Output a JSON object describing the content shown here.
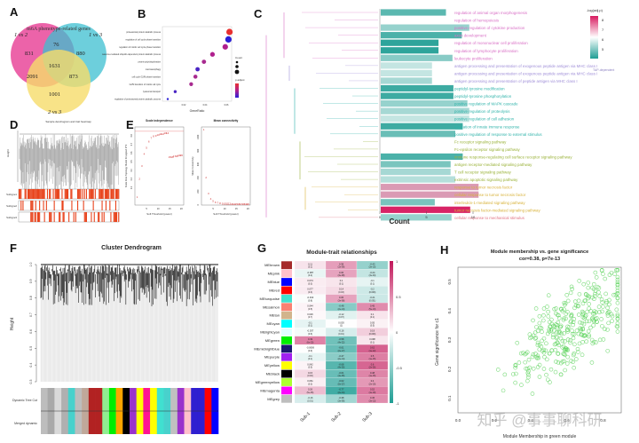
{
  "chart_data": [
    {
      "panel": "A",
      "type": "venn",
      "title": "m6A phenotype-related genes",
      "sets": [
        "1 vs 2",
        "1 vs 3",
        "2 vs 3"
      ],
      "regions": {
        "only_1vs2": 831,
        "only_1vs3": 880,
        "only_2vs3": 1001,
        "1vs2_1vs3": 76,
        "1vs2_2vs3": 2091,
        "1vs3_2vs3": 873,
        "all": 1631
      },
      "colors": [
        "#e9489a",
        "#3cbfd0",
        "#f6dc6a"
      ]
    },
    {
      "panel": "B",
      "type": "scatter",
      "subtype": "dotplot",
      "xlabel": "GeneRatio",
      "x_ticks": [
        "0.02",
        "0.04",
        "0.06"
      ],
      "legend_count_title": "Count",
      "legend_p_title": "p.adjust",
      "terms": [
        {
          "label": "proteasomal protein catabolic process",
          "x": 0.063,
          "size": 3,
          "color": "#e8302f"
        },
        {
          "label": "regulation of cell cycle phase transition",
          "x": 0.062,
          "size": 3,
          "color": "#2a1fd6"
        },
        {
          "label": "regulation of mitotic cell cycle phase transition",
          "x": 0.059,
          "size": 2.6,
          "color": "#b0208e"
        },
        {
          "label": "proteasome-mediated ubiquitin-dependent protein catabolic process",
          "x": 0.047,
          "size": 2.2,
          "color": "#b0208e"
        },
        {
          "label": "protein polyubiquitination",
          "x": 0.039,
          "size": 2,
          "color": "#a82a8f"
        },
        {
          "label": "macroautophagy",
          "x": 0.033,
          "size": 2,
          "color": "#4a24c4"
        },
        {
          "label": "cell cycle G2/M phase transition",
          "x": 0.031,
          "size": 1.9,
          "color": "#a82a8f"
        },
        {
          "label": "G2/M transition of mitotic cell cycle",
          "x": 0.027,
          "size": 1.8,
          "color": "#a82a8f"
        },
        {
          "label": "lysosomal transport",
          "x": 0.012,
          "size": 1.4,
          "color": "#4a24c4"
        },
        {
          "label": "regulation of proteasomal protein catabolic process",
          "x": 0.005,
          "size": 1,
          "color": "#2a1fd6"
        }
      ]
    },
    {
      "panel": "C",
      "type": "bar",
      "orientation": "horizontal",
      "xlabel": "Count",
      "x_ticks": [
        "0",
        "5",
        "10"
      ],
      "xlim": [
        0,
        12
      ],
      "legend_title": "-log(adj.p)",
      "legend_ticks": [
        "8",
        "7",
        "6",
        "5"
      ],
      "categories": [
        {
          "label": "regulation of animal organ morphogenesis",
          "value": 7,
          "neglogp": 5.2,
          "group": "pink"
        },
        {
          "label": "regulation of hemopoiesis",
          "value": 0,
          "neglogp": 6,
          "group": "pink"
        },
        {
          "label": "positive regulation of cytokine production",
          "value": 9.5,
          "neglogp": 5.6,
          "group": "pink"
        },
        {
          "label": "axon development",
          "value": 8.7,
          "neglogp": 5.1,
          "group": "pink"
        },
        {
          "label": "regulation of mononuclear cell proliferation",
          "value": 6.2,
          "neglogp": 4.9,
          "group": "pink"
        },
        {
          "label": "regulation of lymphocyte proliferation",
          "value": 6.2,
          "neglogp": 4.9,
          "group": "pink"
        },
        {
          "label": "leukocyte proliferation",
          "value": 7.7,
          "neglogp": 5.5,
          "group": "pink"
        },
        {
          "label": "antigen processing and presentation of exogenous peptide antigen via MHC class I",
          "value": 5.5,
          "neglogp": 5.9,
          "group": "purple"
        },
        {
          "label": "antigen processing and presentation of exogenous peptide antigen via MHC class I",
          "value": 5.5,
          "neglogp": 5.9,
          "group": "purple"
        },
        {
          "label": "antigen processing and presentation of peptide antigen via MHC class I",
          "value": 5.5,
          "neglogp": 5.7,
          "group": "purple"
        },
        {
          "label": "peptidyl-tyrosine modification",
          "value": 7.8,
          "neglogp": 5.0,
          "group": "teal"
        },
        {
          "label": "peptidyl-tyrosine phosphorylation",
          "value": 7.8,
          "neglogp": 5.0,
          "group": "teal"
        },
        {
          "label": "positive regulation of MAPK cascade",
          "value": 9.3,
          "neglogp": 5.6,
          "group": "teal"
        },
        {
          "label": "positive regulation of proteolysis",
          "value": 9.5,
          "neglogp": 5.7,
          "group": "teal"
        },
        {
          "label": "positive regulation of cell adhesion",
          "value": 9.5,
          "neglogp": 5.9,
          "group": "teal"
        },
        {
          "label": "regulation of innate immune response",
          "value": 8.8,
          "neglogp": 5.0,
          "group": "teal"
        },
        {
          "label": "positive regulation of response to external stimulus",
          "value": 8.0,
          "neglogp": 5.3,
          "group": "teal"
        },
        {
          "label": "Fc receptor signaling pathway",
          "value": 0,
          "neglogp": 6,
          "group": "olive"
        },
        {
          "label": "Fc-epsilon receptor signaling pathway",
          "value": 0,
          "neglogp": 6,
          "group": "olive"
        },
        {
          "label": "immune response-regulating cell surface receptor signaling pathway",
          "value": 8.8,
          "neglogp": 5.1,
          "group": "olive"
        },
        {
          "label": "antigen receptor-mediated signaling pathway",
          "value": 7.5,
          "neglogp": 5.4,
          "group": "olive"
        },
        {
          "label": "T cell receptor signaling pathway",
          "value": 7.5,
          "neglogp": 5.7,
          "group": "olive"
        },
        {
          "label": "extrinsic apoptotic signaling pathway",
          "value": 8.0,
          "neglogp": 5.8,
          "group": "olive"
        },
        {
          "label": "response to tumor necrosis factor",
          "value": 10.5,
          "neglogp": 7.0,
          "group": "yellow"
        },
        {
          "label": "cellular response to tumor necrosis factor",
          "value": 10.5,
          "neglogp": 7.0,
          "group": "yellow"
        },
        {
          "label": "interleukin-1-mediated signaling pathway",
          "value": 5.8,
          "neglogp": 5.4,
          "group": "yellow"
        },
        {
          "label": "tumor necrosis factor-mediated signaling pathway",
          "value": 9.6,
          "neglogp": 8.3,
          "group": "yellow"
        },
        {
          "label": "cellular response to mechanical stimulus",
          "value": 7.6,
          "neglogp": 5.6,
          "group": "red"
        }
      ],
      "side_note": "TAP-dependent"
    },
    {
      "panel": "D",
      "type": "dendrogram",
      "title": "Sample dendrogram and trait heatmap",
      "ylabel": "Height",
      "trait_rows": [
        "Subtype1",
        "Subtype2",
        "Subtype3"
      ]
    },
    {
      "panel": "E",
      "type": "scatter",
      "plots": [
        {
          "title": "Scale independence",
          "xlabel": "Soft Threshold (power)",
          "ylabel": "Scale Free Topology Model Fit,signed R^2",
          "x_ticks": [
            "5",
            "10",
            "15",
            "20"
          ],
          "y_ticks": [
            "0.2",
            "0.3",
            "0.4",
            "0.5",
            "0.6",
            "0.7",
            "0.8"
          ],
          "points": [
            [
              1,
              0.08
            ],
            [
              2,
              0.29
            ],
            [
              3,
              0.44
            ],
            [
              4,
              0.58
            ],
            [
              5,
              0.65
            ],
            [
              6,
              0.72
            ],
            [
              7,
              0.76
            ],
            [
              8,
              0.78
            ],
            [
              9,
              0.79
            ],
            [
              10,
              0.8
            ],
            [
              11,
              0.81
            ],
            [
              12,
              0.81
            ],
            [
              13,
              0.82
            ],
            [
              14,
              0.82
            ],
            [
              15,
              0.54
            ],
            [
              16,
              0.54
            ],
            [
              17,
              0.55
            ],
            [
              18,
              0.55
            ],
            [
              19,
              0.56
            ],
            [
              20,
              0.56
            ]
          ]
        },
        {
          "title": "Mean connectivity",
          "xlabel": "Soft Threshold (power)",
          "ylabel": "Mean Connectivity",
          "x_ticks": [
            "5",
            "10",
            "15",
            "20"
          ],
          "y_ticks": [
            "0",
            "200",
            "400",
            "600",
            "800",
            "1000"
          ],
          "points": [
            [
              1,
              1100
            ],
            [
              2,
              390
            ],
            [
              3,
              160
            ],
            [
              4,
              80
            ],
            [
              5,
              45
            ],
            [
              6,
              28
            ],
            [
              7,
              18
            ],
            [
              8,
              12
            ],
            [
              9,
              9
            ],
            [
              10,
              7
            ],
            [
              11,
              5
            ],
            [
              12,
              4
            ],
            [
              13,
              3
            ],
            [
              14,
              3
            ],
            [
              15,
              2
            ],
            [
              16,
              2
            ],
            [
              17,
              2
            ],
            [
              18,
              1
            ],
            [
              19,
              1
            ],
            [
              20,
              1
            ]
          ]
        }
      ]
    },
    {
      "panel": "F",
      "type": "dendrogram",
      "title": "Cluster Dendrogram",
      "ylabel": "Height",
      "y_ticks": [
        "0.3",
        "0.4",
        "0.5",
        "0.6",
        "0.7",
        "0.8",
        "0.9",
        "1.0"
      ],
      "ylim": [
        0.3,
        1.0
      ],
      "color_rows": [
        "Dynamic Tree Cut",
        "Merged dynamic"
      ],
      "module_colors": [
        "#bdbdbd",
        "#a9a9a9",
        "#d9d9d9",
        "#b0b0b0",
        "#48d1cc",
        "#bdbdbd",
        "#c0a89a",
        "#b22222",
        "#b22222",
        "#90ee90",
        "#00ee00",
        "#ffa500",
        "#000000",
        "#9932cc",
        "#ffff00",
        "#ff1493",
        "#ffff00",
        "#40e0d0",
        "#48d1cc",
        "#c0c0c0",
        "#9932cc",
        "#ffc0cb",
        "#2f1fd0",
        "#2f1fd0",
        "#ff0000",
        "#0000ff"
      ]
    },
    {
      "panel": "G",
      "type": "heatmap",
      "title": "Module-trait relationships",
      "columns": [
        "Sub-1",
        "Sub-2",
        "Sub-3"
      ],
      "colorbar_ticks": [
        "1",
        "0.5",
        "0",
        "-0.5",
        "-1"
      ],
      "rows": [
        {
          "module": "MEbrown",
          "color": "#a52a2a",
          "values": [
            0.11,
            0.38,
            -0.43
          ],
          "p": [
            "(0.1)",
            "(1e-09)",
            "(3e-10)"
          ]
        },
        {
          "module": "MEpink",
          "color": "#ffc0cb",
          "values": [
            -0.087,
            0.36,
            -0.24
          ],
          "p": [
            "(0.2)",
            "(3e-08)",
            "(3e-04)"
          ]
        },
        {
          "module": "MEblue",
          "color": "#0000ff",
          "values": [
            0.074,
            0.1,
            -0.1
          ],
          "p": [
            "(0.3)",
            "(0.1)",
            "(0.1)"
          ]
        },
        {
          "module": "MEred",
          "color": "#ff0000",
          "values": [
            0.077,
            0.14,
            -0.2
          ],
          "p": [
            "(0.3)",
            "(0.03)",
            "(0.003)"
          ]
        },
        {
          "module": "MEturquoise",
          "color": "#40e0d0",
          "values": [
            -0.019,
            0.36,
            -0.21
          ],
          "p": [
            "(0.8)",
            "(3e-08)",
            "(0.001)"
          ]
        },
        {
          "module": "MEsalmon",
          "color": "#fa8072",
          "values": [
            0.044,
            -0.48,
            0.45
          ],
          "p": [
            "(0.5)",
            "(2e-14)",
            "(5e-13)"
          ]
        },
        {
          "module": "MEtan",
          "color": "#d2b48c",
          "values": [
            0.026,
            -0.12,
            0.1
          ],
          "p": [
            "(0.7)",
            "(0.07)",
            "(0.1)"
          ]
        },
        {
          "module": "MEcyan",
          "color": "#00ffff",
          "values": [
            -0.1,
            0.003,
            0.05
          ],
          "p": [
            "(0.1)",
            "(1)",
            "(0.5)"
          ]
        },
        {
          "module": "MElightcyan",
          "color": "#e0ffff",
          "values": [
            -0.037,
            -0.16,
            0.19
          ],
          "p": [
            "(0.6)",
            "(0.01)",
            "(0.003)"
          ]
        },
        {
          "module": "MEgreen",
          "color": "#00ee00",
          "values": [
            0.49,
            -0.58,
            0.098
          ],
          "p": [
            "(6e-15)",
            "(4e-22)",
            "(0.1)"
          ]
        },
        {
          "module": "MEmidnightblue",
          "color": "#191970",
          "values": [
            -0.0069,
            -0.61,
            0.62
          ],
          "p": [
            "(0.9)",
            "(2e-17)",
            "(1e-12)"
          ]
        },
        {
          "module": "MEpurple",
          "color": "#a020f0",
          "values": [
            -0.1,
            -0.47,
            0.5
          ],
          "p": [
            "(0.1)",
            "(2e-14)",
            "(1e-15)"
          ]
        },
        {
          "module": "MEyellow",
          "color": "#ffff00",
          "values": [
            0.042,
            -0.68,
            0.6
          ],
          "p": [
            "(0.5)",
            "(4e-30)",
            "(2e-26)"
          ]
        },
        {
          "module": "MEblack",
          "color": "#000000",
          "values": [
            0.15,
            -0.61,
            0.48
          ],
          "p": [
            "(0.02)",
            "(4e-25)",
            "(1e-15)"
          ]
        },
        {
          "module": "MEgreenyellow",
          "color": "#adff2f",
          "values": [
            0.061,
            -0.62,
            0.4
          ],
          "p": [
            "(0.3)",
            "(5e-27)",
            "(2e-19)"
          ]
        },
        {
          "module": "MEmagenta",
          "color": "#ff00ff",
          "values": [
            0.26,
            -0.77,
            0.52
          ],
          "p": [
            "(5e-05)",
            "(2e-44)",
            "(4e-18)"
          ]
        },
        {
          "module": "MEgrey",
          "color": "#bebebe",
          "values": [
            -0.16,
            -0.38,
            0.45
          ],
          "p": [
            "(0.01)",
            "(3e-09)",
            "(3e-13)"
          ]
        }
      ]
    },
    {
      "panel": "H",
      "type": "scatter",
      "title": "Module membership vs. gene significance",
      "subtitle": "cor=0.38, p=7e-13",
      "xlabel": "Module Membership in green module",
      "ylabel": "Gene significance for c1",
      "x_ticks": [
        "0.0",
        "0.2",
        "0.4",
        "0.6",
        "0.8"
      ],
      "y_ticks": [
        "0.1",
        "0.2",
        "0.3",
        "0.4",
        "0.5"
      ],
      "xlim": [
        0.0,
        0.9
      ],
      "ylim": [
        0.05,
        0.55
      ],
      "point_color": "#5fd35f",
      "n_points_approx": 350
    }
  ],
  "panel_labels": [
    "A",
    "B",
    "C",
    "D",
    "E",
    "F",
    "G",
    "H"
  ],
  "watermark": "知乎 @事事聊科研"
}
